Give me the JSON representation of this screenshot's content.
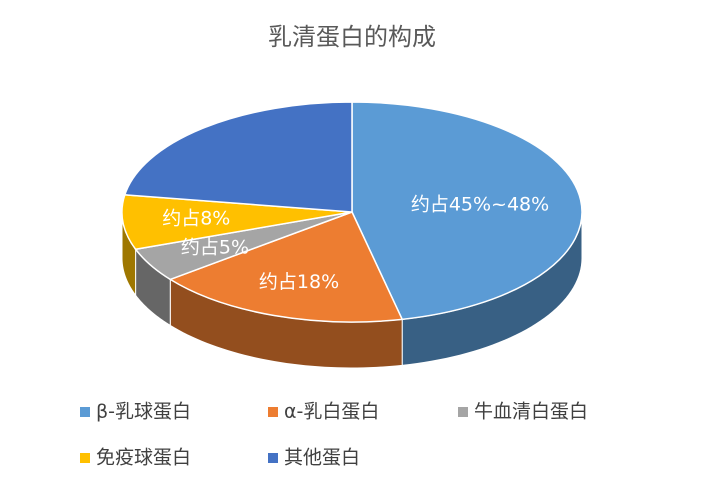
{
  "chart_data": {
    "type": "pie3d",
    "title": "乳清蛋白的构成",
    "categories": [
      "β-乳球蛋白",
      "α-乳白蛋白",
      "牛血清白蛋白",
      "免疫球蛋白",
      "其他蛋白"
    ],
    "values": [
      46.5,
      18,
      5,
      8,
      22.5
    ],
    "value_labels": [
      "约占45%~48%",
      "约占18%",
      "约占5%",
      "约占8%",
      null
    ],
    "colors": [
      "#5b9bd5",
      "#ed7d31",
      "#a5a5a5",
      "#ffc000",
      "#4472c4"
    ],
    "legend": "bottom"
  }
}
